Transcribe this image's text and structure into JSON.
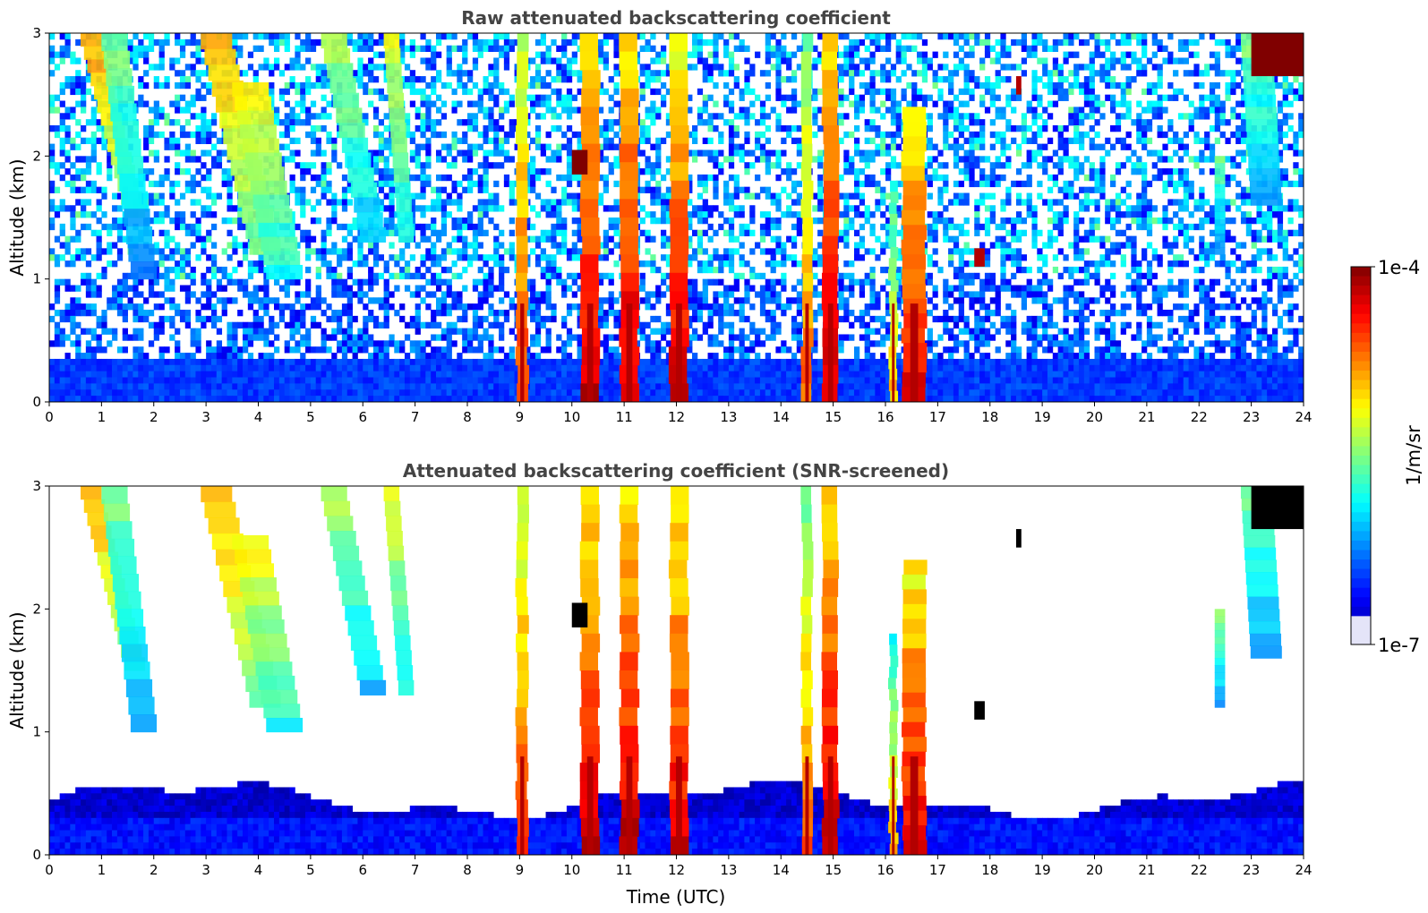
{
  "chart_data": [
    {
      "type": "heatmap",
      "title": "Raw attenuated backscattering coefficient",
      "xlabel": "",
      "ylabel": "Altitude (km)",
      "xlim": [
        0,
        24
      ],
      "ylim": [
        0,
        3
      ],
      "xticks": [
        "0",
        "1",
        "2",
        "3",
        "4",
        "5",
        "6",
        "7",
        "8",
        "9",
        "10",
        "11",
        "12",
        "13",
        "14",
        "15",
        "16",
        "17",
        "18",
        "19",
        "20",
        "21",
        "22",
        "23",
        "24"
      ],
      "yticks": [
        "0",
        "1",
        "2",
        "3"
      ],
      "screened": false,
      "features": [
        {
          "kind": "virga",
          "t0": 0.6,
          "t1": 1.0,
          "z_top": 3.0,
          "z_bottom": 1.5,
          "drift": 0.9,
          "level": 0.72
        },
        {
          "kind": "virga",
          "t0": 1.0,
          "t1": 1.5,
          "z_top": 3.0,
          "z_bottom": 1.0,
          "drift": 0.6,
          "level": 0.5
        },
        {
          "kind": "virga",
          "t0": 2.9,
          "t1": 3.5,
          "z_top": 3.0,
          "z_bottom": 1.2,
          "drift": 1.0,
          "level": 0.72
        },
        {
          "kind": "virga",
          "t0": 3.5,
          "t1": 4.2,
          "z_top": 2.6,
          "z_bottom": 1.0,
          "drift": 0.7,
          "level": 0.62
        },
        {
          "kind": "virga",
          "t0": 5.2,
          "t1": 5.7,
          "z_top": 3.0,
          "z_bottom": 1.3,
          "drift": 0.8,
          "level": 0.55
        },
        {
          "kind": "virga",
          "t0": 6.4,
          "t1": 6.7,
          "z_top": 3.0,
          "z_bottom": 1.3,
          "drift": 0.3,
          "level": 0.6
        },
        {
          "kind": "virga",
          "t0": 22.3,
          "t1": 22.5,
          "z_top": 2.0,
          "z_bottom": 1.2,
          "drift": 0.0,
          "level": 0.5
        },
        {
          "kind": "virga",
          "t0": 22.8,
          "t1": 23.4,
          "z_top": 3.0,
          "z_bottom": 1.6,
          "drift": 0.2,
          "level": 0.5
        },
        {
          "kind": "column",
          "t": 9.05,
          "w": 0.22,
          "z_top": 3.0,
          "level": 0.85
        },
        {
          "kind": "column",
          "t": 10.35,
          "w": 0.35,
          "z_top": 3.0,
          "level": 0.95
        },
        {
          "kind": "column",
          "t": 11.1,
          "w": 0.35,
          "z_top": 3.0,
          "level": 0.95
        },
        {
          "kind": "column",
          "t": 12.05,
          "w": 0.35,
          "z_top": 3.0,
          "level": 0.92
        },
        {
          "kind": "column",
          "t": 14.5,
          "w": 0.2,
          "z_top": 3.0,
          "level": 0.8
        },
        {
          "kind": "column",
          "t": 14.95,
          "w": 0.3,
          "z_top": 3.0,
          "level": 0.95
        },
        {
          "kind": "column",
          "t": 16.15,
          "w": 0.15,
          "z_top": 1.8,
          "level": 0.7
        },
        {
          "kind": "column",
          "t": 16.55,
          "w": 0.45,
          "z_top": 2.4,
          "level": 0.92
        },
        {
          "kind": "patch",
          "t0": 10.0,
          "t1": 10.3,
          "z0": 1.85,
          "z1": 2.05,
          "level": 1.0
        },
        {
          "kind": "patch",
          "t0": 17.7,
          "t1": 17.9,
          "z0": 1.1,
          "z1": 1.25,
          "level": 0.95
        },
        {
          "kind": "patch",
          "t0": 18.5,
          "t1": 18.6,
          "z0": 2.5,
          "z1": 2.65,
          "level": 0.95
        },
        {
          "kind": "patch",
          "t0": 23.0,
          "t1": 24.0,
          "z0": 2.65,
          "z1": 3.0,
          "level": 1.0
        }
      ]
    },
    {
      "type": "heatmap",
      "title": "Attenuated backscattering coefficient (SNR-screened)",
      "xlabel": "Time (UTC)",
      "ylabel": "Altitude (km)",
      "xlim": [
        0,
        24
      ],
      "ylim": [
        0,
        3
      ],
      "xticks": [
        "0",
        "1",
        "2",
        "3",
        "4",
        "5",
        "6",
        "7",
        "8",
        "9",
        "10",
        "11",
        "12",
        "13",
        "14",
        "15",
        "16",
        "17",
        "18",
        "19",
        "20",
        "21",
        "22",
        "23",
        "24"
      ],
      "yticks": [
        "0",
        "1",
        "2",
        "3"
      ],
      "screened": true,
      "features": [
        {
          "kind": "virga",
          "t0": 0.6,
          "t1": 1.0,
          "z_top": 3.0,
          "z_bottom": 1.5,
          "drift": 0.9,
          "level": 0.72
        },
        {
          "kind": "virga",
          "t0": 1.0,
          "t1": 1.5,
          "z_top": 3.0,
          "z_bottom": 1.0,
          "drift": 0.6,
          "level": 0.5
        },
        {
          "kind": "virga",
          "t0": 2.9,
          "t1": 3.5,
          "z_top": 3.0,
          "z_bottom": 1.2,
          "drift": 1.0,
          "level": 0.72
        },
        {
          "kind": "virga",
          "t0": 3.5,
          "t1": 4.2,
          "z_top": 2.6,
          "z_bottom": 1.0,
          "drift": 0.7,
          "level": 0.62
        },
        {
          "kind": "virga",
          "t0": 5.2,
          "t1": 5.7,
          "z_top": 3.0,
          "z_bottom": 1.3,
          "drift": 0.8,
          "level": 0.55
        },
        {
          "kind": "virga",
          "t0": 6.4,
          "t1": 6.7,
          "z_top": 3.0,
          "z_bottom": 1.3,
          "drift": 0.3,
          "level": 0.6
        },
        {
          "kind": "virga",
          "t0": 22.3,
          "t1": 22.5,
          "z_top": 2.0,
          "z_bottom": 1.2,
          "drift": 0.0,
          "level": 0.5
        },
        {
          "kind": "virga",
          "t0": 22.8,
          "t1": 23.4,
          "z_top": 3.0,
          "z_bottom": 1.6,
          "drift": 0.2,
          "level": 0.5
        },
        {
          "kind": "column",
          "t": 9.05,
          "w": 0.22,
          "z_top": 3.0,
          "level": 0.85
        },
        {
          "kind": "column",
          "t": 10.35,
          "w": 0.35,
          "z_top": 3.0,
          "level": 0.95
        },
        {
          "kind": "column",
          "t": 11.1,
          "w": 0.35,
          "z_top": 3.0,
          "level": 0.95
        },
        {
          "kind": "column",
          "t": 12.05,
          "w": 0.35,
          "z_top": 3.0,
          "level": 0.92
        },
        {
          "kind": "column",
          "t": 14.5,
          "w": 0.2,
          "z_top": 3.0,
          "level": 0.8
        },
        {
          "kind": "column",
          "t": 14.95,
          "w": 0.3,
          "z_top": 3.0,
          "level": 0.95
        },
        {
          "kind": "column",
          "t": 16.15,
          "w": 0.15,
          "z_top": 1.8,
          "level": 0.7
        },
        {
          "kind": "column",
          "t": 16.55,
          "w": 0.45,
          "z_top": 2.4,
          "level": 0.92
        },
        {
          "kind": "patch",
          "t0": 10.0,
          "t1": 10.3,
          "z0": 1.85,
          "z1": 2.05,
          "level": 1.0
        },
        {
          "kind": "patch",
          "t0": 17.7,
          "t1": 17.9,
          "z0": 1.1,
          "z1": 1.25,
          "level": 0.95
        },
        {
          "kind": "patch",
          "t0": 18.5,
          "t1": 18.6,
          "z0": 2.5,
          "z1": 2.65,
          "level": 0.95
        },
        {
          "kind": "patch",
          "t0": 23.0,
          "t1": 24.0,
          "z0": 2.65,
          "z1": 3.0,
          "level": 1.0
        }
      ]
    }
  ],
  "colorbar": {
    "label": "1/m/sr",
    "max_label": "1e-4",
    "min_label": "1e-7",
    "colormap": "jet",
    "scale": "log",
    "range": [
      1e-07,
      0.0001
    ]
  },
  "colors": {
    "title_text": "#444444",
    "axis_line": "#000000",
    "background": "#ffffff"
  }
}
